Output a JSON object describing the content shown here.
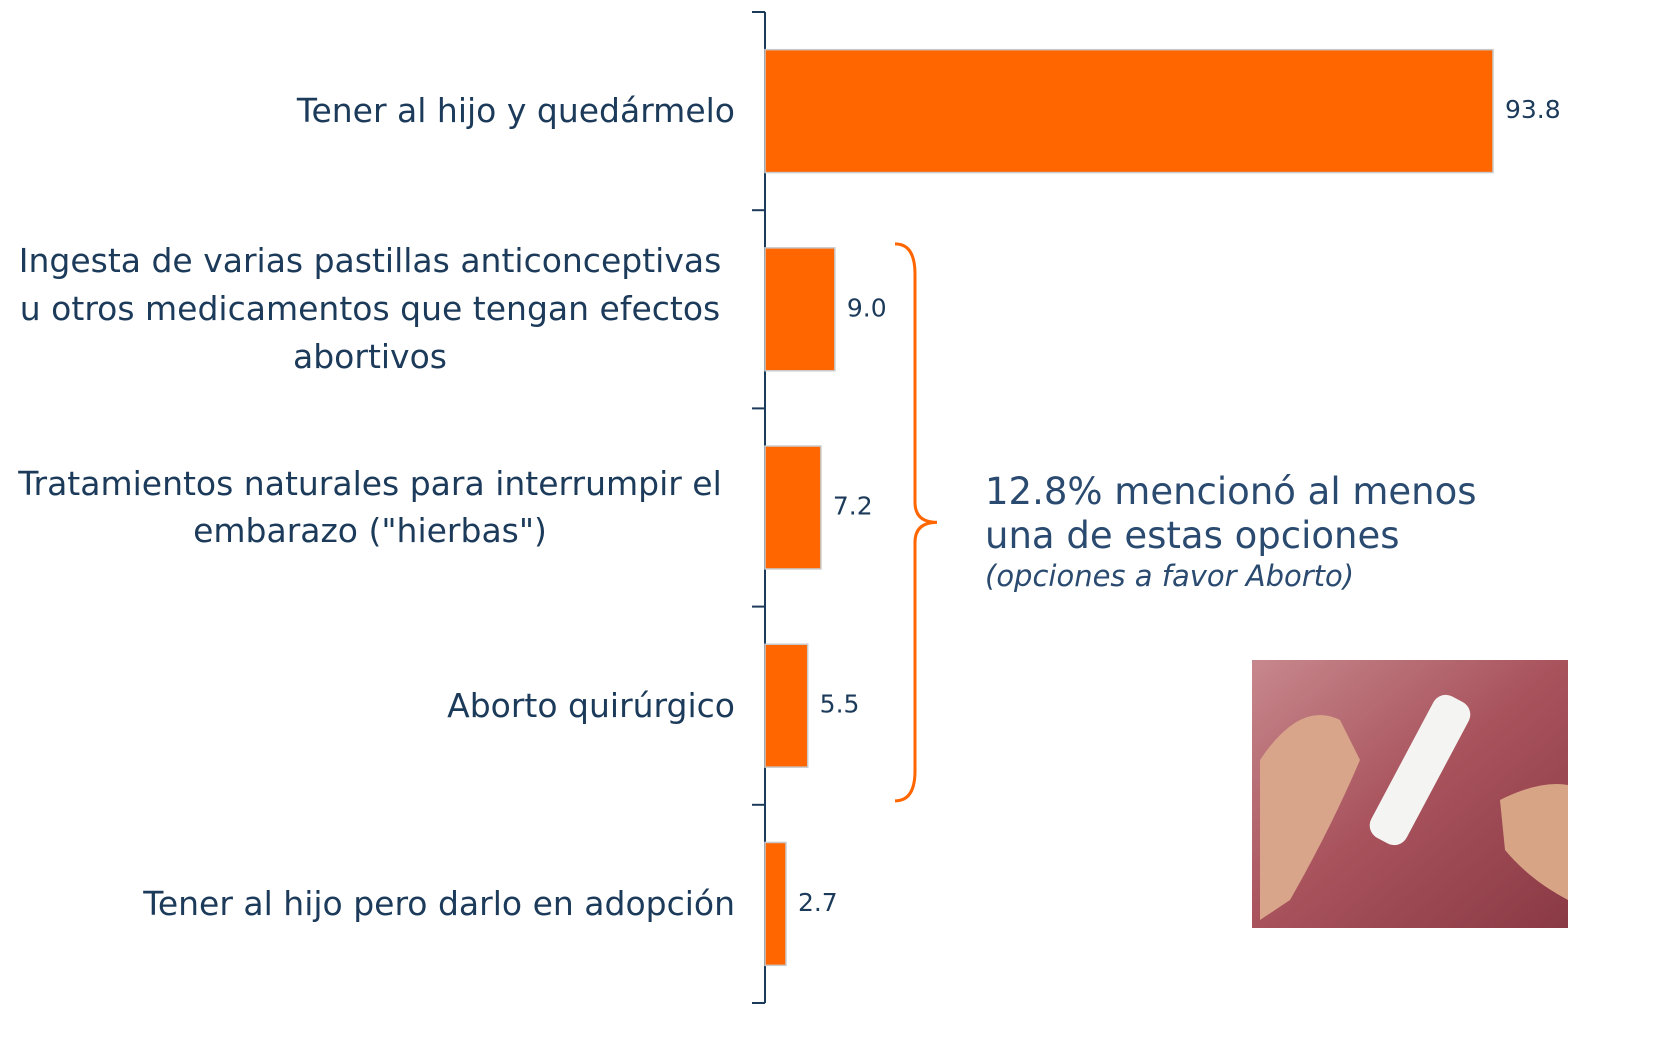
{
  "chart_data": {
    "type": "bar",
    "orientation": "horizontal",
    "categories": [
      "Tener al hijo y quedármelo",
      "Ingesta de varias pastillas anticonceptivas u otros medicamentos que tengan efectos abortivos",
      "Tratamientos naturales para interrumpir el embarazo (\"hierbas\")",
      "Aborto quirúrgico",
      "Tener al hijo pero darlo en adopción"
    ],
    "values": [
      93.8,
      9.0,
      7.2,
      5.5,
      2.7
    ],
    "value_labels": [
      "93.8",
      "9.0",
      "7.2",
      "5.5",
      "2.7"
    ],
    "color": "#ff6600",
    "annotation": {
      "text": "12.8% mencionó al menos una de estas opciones",
      "note": "(opciones a favor Aborto)",
      "color": "#ff6600"
    }
  }
}
